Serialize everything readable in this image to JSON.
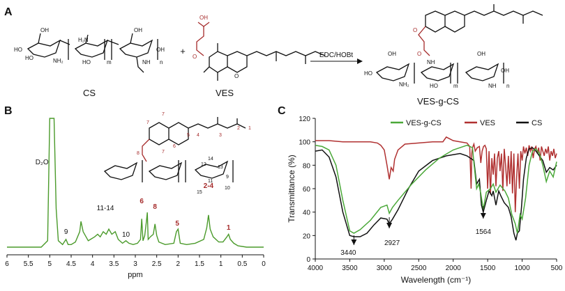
{
  "panel_a": {
    "label": "A",
    "cs_label": "CS",
    "ves_label": "VES",
    "product_label": "VES-g-CS",
    "plus": "+",
    "reagent": "EDC/HOBt",
    "atoms": {
      "ho": "HO",
      "oh": "OH",
      "o": "O",
      "h2n": "H₂N",
      "nh2": "NH₂",
      "nh": "NH",
      "m": "m",
      "n": "n",
      "h": "H"
    }
  },
  "panel_b": {
    "label": "B",
    "peak_labels": [
      {
        "text": "D₂O",
        "color": "#111111"
      },
      {
        "text": "9",
        "color": "#111111"
      },
      {
        "text": "11-14",
        "color": "#111111"
      },
      {
        "text": "10",
        "color": "#111111"
      },
      {
        "text": "6",
        "color": "#a52a2a"
      },
      {
        "text": "8",
        "color": "#a52a2a"
      },
      {
        "text": "5",
        "color": "#a52a2a"
      },
      {
        "text": "2-4",
        "color": "#a52a2a"
      },
      {
        "text": "1",
        "color": "#a52a2a"
      }
    ],
    "struct_numbers": [
      "7",
      "7",
      "7",
      "6",
      "5",
      "4",
      "3",
      "2",
      "1",
      "8",
      "12",
      "13",
      "14",
      "11",
      "9",
      "10",
      "15"
    ]
  },
  "panel_c": {
    "label": "C",
    "annotations": [
      "3440",
      "2927",
      "1564"
    ]
  },
  "chart_data": [
    {
      "type": "line",
      "panel": "B",
      "xlabel": "ppm",
      "ylabel": "",
      "xlim": [
        6,
        0
      ],
      "x_ticks": [
        6,
        5.5,
        5,
        4.5,
        4,
        3.5,
        3,
        2.5,
        2,
        1.5,
        1,
        0.5,
        0
      ],
      "x_tick_labels": [
        "6",
        "5.5",
        "5",
        "4.5",
        "4",
        "3.5",
        "3",
        "2.5",
        "2",
        "1.5",
        "1",
        "0.5",
        "0"
      ],
      "series": [
        {
          "color": "#4a9a2a",
          "x": [
            6.0,
            5.2,
            5.05,
            5.0,
            4.97,
            4.93,
            4.9,
            4.85,
            4.8,
            4.7,
            4.62,
            4.57,
            4.5,
            4.4,
            4.3,
            4.27,
            4.22,
            4.1,
            3.95,
            3.88,
            3.82,
            3.75,
            3.68,
            3.62,
            3.55,
            3.47,
            3.4,
            3.3,
            3.22,
            3.15,
            3.05,
            2.95,
            2.88,
            2.85,
            2.82,
            2.78,
            2.74,
            2.72,
            2.7,
            2.65,
            2.58,
            2.54,
            2.5,
            2.45,
            2.3,
            2.1,
            2.04,
            2.0,
            1.95,
            1.8,
            1.6,
            1.4,
            1.33,
            1.29,
            1.25,
            1.18,
            1.05,
            0.95,
            0.86,
            0.82,
            0.78,
            0.7,
            0.6,
            0.4,
            0.0
          ],
          "y": [
            0.0,
            0.0,
            0.05,
            1.0,
            1.0,
            1.0,
            1.0,
            0.3,
            0.05,
            0.02,
            0.06,
            0.02,
            0.02,
            0.04,
            0.12,
            0.2,
            0.12,
            0.05,
            0.08,
            0.1,
            0.08,
            0.12,
            0.1,
            0.14,
            0.1,
            0.12,
            0.06,
            0.03,
            0.05,
            0.03,
            0.02,
            0.03,
            0.06,
            0.22,
            0.05,
            0.09,
            0.2,
            0.27,
            0.06,
            0.08,
            0.1,
            0.18,
            0.09,
            0.04,
            0.02,
            0.03,
            0.12,
            0.14,
            0.03,
            0.02,
            0.03,
            0.06,
            0.15,
            0.25,
            0.14,
            0.08,
            0.04,
            0.04,
            0.08,
            0.1,
            0.06,
            0.03,
            0.01,
            0.0,
            0.0
          ]
        }
      ]
    },
    {
      "type": "line",
      "panel": "C",
      "xlabel": "Wavelength (cm⁻¹)",
      "ylabel": "Transmittance (%)",
      "xlim": [
        4000,
        500
      ],
      "ylim": [
        0,
        120
      ],
      "x_ticks": [
        4000,
        3500,
        3000,
        2500,
        2000,
        1500,
        1000,
        500
      ],
      "y_ticks": [
        0,
        20,
        40,
        60,
        80,
        100,
        120
      ],
      "legend_position": "top",
      "series": [
        {
          "name": "VES-g-CS",
          "color": "#4aa838",
          "x": [
            4000,
            3900,
            3800,
            3700,
            3600,
            3500,
            3440,
            3350,
            3200,
            3050,
            2960,
            2927,
            2880,
            2800,
            2600,
            2400,
            2200,
            2000,
            1800,
            1720,
            1700,
            1660,
            1630,
            1600,
            1564,
            1520,
            1460,
            1420,
            1380,
            1320,
            1250,
            1200,
            1150,
            1100,
            1070,
            1030,
            1000,
            950,
            900,
            850,
            800,
            750,
            700,
            650,
            600,
            550,
            500
          ],
          "y": [
            97,
            96,
            93,
            80,
            50,
            24,
            22,
            25,
            33,
            44,
            46,
            39,
            44,
            50,
            64,
            76,
            86,
            93,
            97,
            95,
            82,
            60,
            64,
            56,
            42,
            57,
            60,
            64,
            57,
            63,
            58,
            52,
            38,
            30,
            22,
            38,
            34,
            52,
            80,
            92,
            94,
            90,
            80,
            66,
            75,
            70,
            83
          ]
        },
        {
          "name": "VES",
          "color": "#b03030",
          "x": [
            4000,
            3800,
            3600,
            3400,
            3200,
            3100,
            3050,
            3000,
            2960,
            2927,
            2900,
            2870,
            2850,
            2800,
            2700,
            2500,
            2300,
            2150,
            2100,
            2000,
            1900,
            1800,
            1760,
            1740,
            1730,
            1720,
            1700,
            1680,
            1650,
            1620,
            1600,
            1580,
            1560,
            1540,
            1520,
            1500,
            1480,
            1460,
            1440,
            1420,
            1400,
            1380,
            1360,
            1340,
            1320,
            1300,
            1280,
            1260,
            1240,
            1220,
            1200,
            1180,
            1160,
            1140,
            1120,
            1100,
            1080,
            1060,
            1040,
            1020,
            1000,
            980,
            960,
            940,
            920,
            900,
            880,
            860,
            840,
            820,
            800,
            780,
            760,
            740,
            720,
            700,
            680,
            660,
            640,
            620,
            600,
            580,
            560,
            540,
            520,
            500
          ],
          "y": [
            101,
            101,
            100,
            100,
            100,
            99,
            97,
            93,
            80,
            68,
            78,
            75,
            85,
            93,
            98,
            99,
            100,
            100,
            104,
            101,
            100,
            99,
            96,
            60,
            90,
            95,
            98,
            92,
            95,
            96,
            82,
            92,
            96,
            97,
            94,
            60,
            92,
            55,
            86,
            72,
            90,
            62,
            86,
            92,
            75,
            90,
            58,
            94,
            80,
            62,
            88,
            64,
            92,
            56,
            90,
            40,
            70,
            90,
            60,
            92,
            84,
            96,
            90,
            95,
            88,
            97,
            92,
            96,
            86,
            94,
            96,
            90,
            95,
            84,
            96,
            92,
            88,
            94,
            90,
            96,
            84,
            92,
            88,
            94,
            86,
            90
          ]
        },
        {
          "name": "CS",
          "color": "#111111",
          "x": [
            4000,
            3900,
            3800,
            3700,
            3600,
            3500,
            3440,
            3350,
            3250,
            3150,
            3050,
            2960,
            2927,
            2880,
            2800,
            2650,
            2500,
            2300,
            2100,
            1900,
            1800,
            1700,
            1660,
            1620,
            1590,
            1564,
            1520,
            1480,
            1440,
            1420,
            1380,
            1340,
            1310,
            1260,
            1200,
            1160,
            1120,
            1090,
            1070,
            1040,
            1010,
            980,
            940,
            900,
            850,
            800,
            750,
            700,
            650,
            600,
            550,
            500
          ],
          "y": [
            92,
            93,
            87,
            70,
            40,
            20,
            19,
            19,
            22,
            29,
            35,
            34,
            30,
            34,
            42,
            60,
            75,
            84,
            88,
            90,
            88,
            84,
            64,
            68,
            46,
            40,
            50,
            58,
            54,
            58,
            46,
            58,
            54,
            48,
            44,
            36,
            22,
            16,
            22,
            24,
            44,
            68,
            86,
            94,
            95,
            92,
            88,
            84,
            74,
            78,
            76,
            80
          ]
        }
      ]
    }
  ]
}
